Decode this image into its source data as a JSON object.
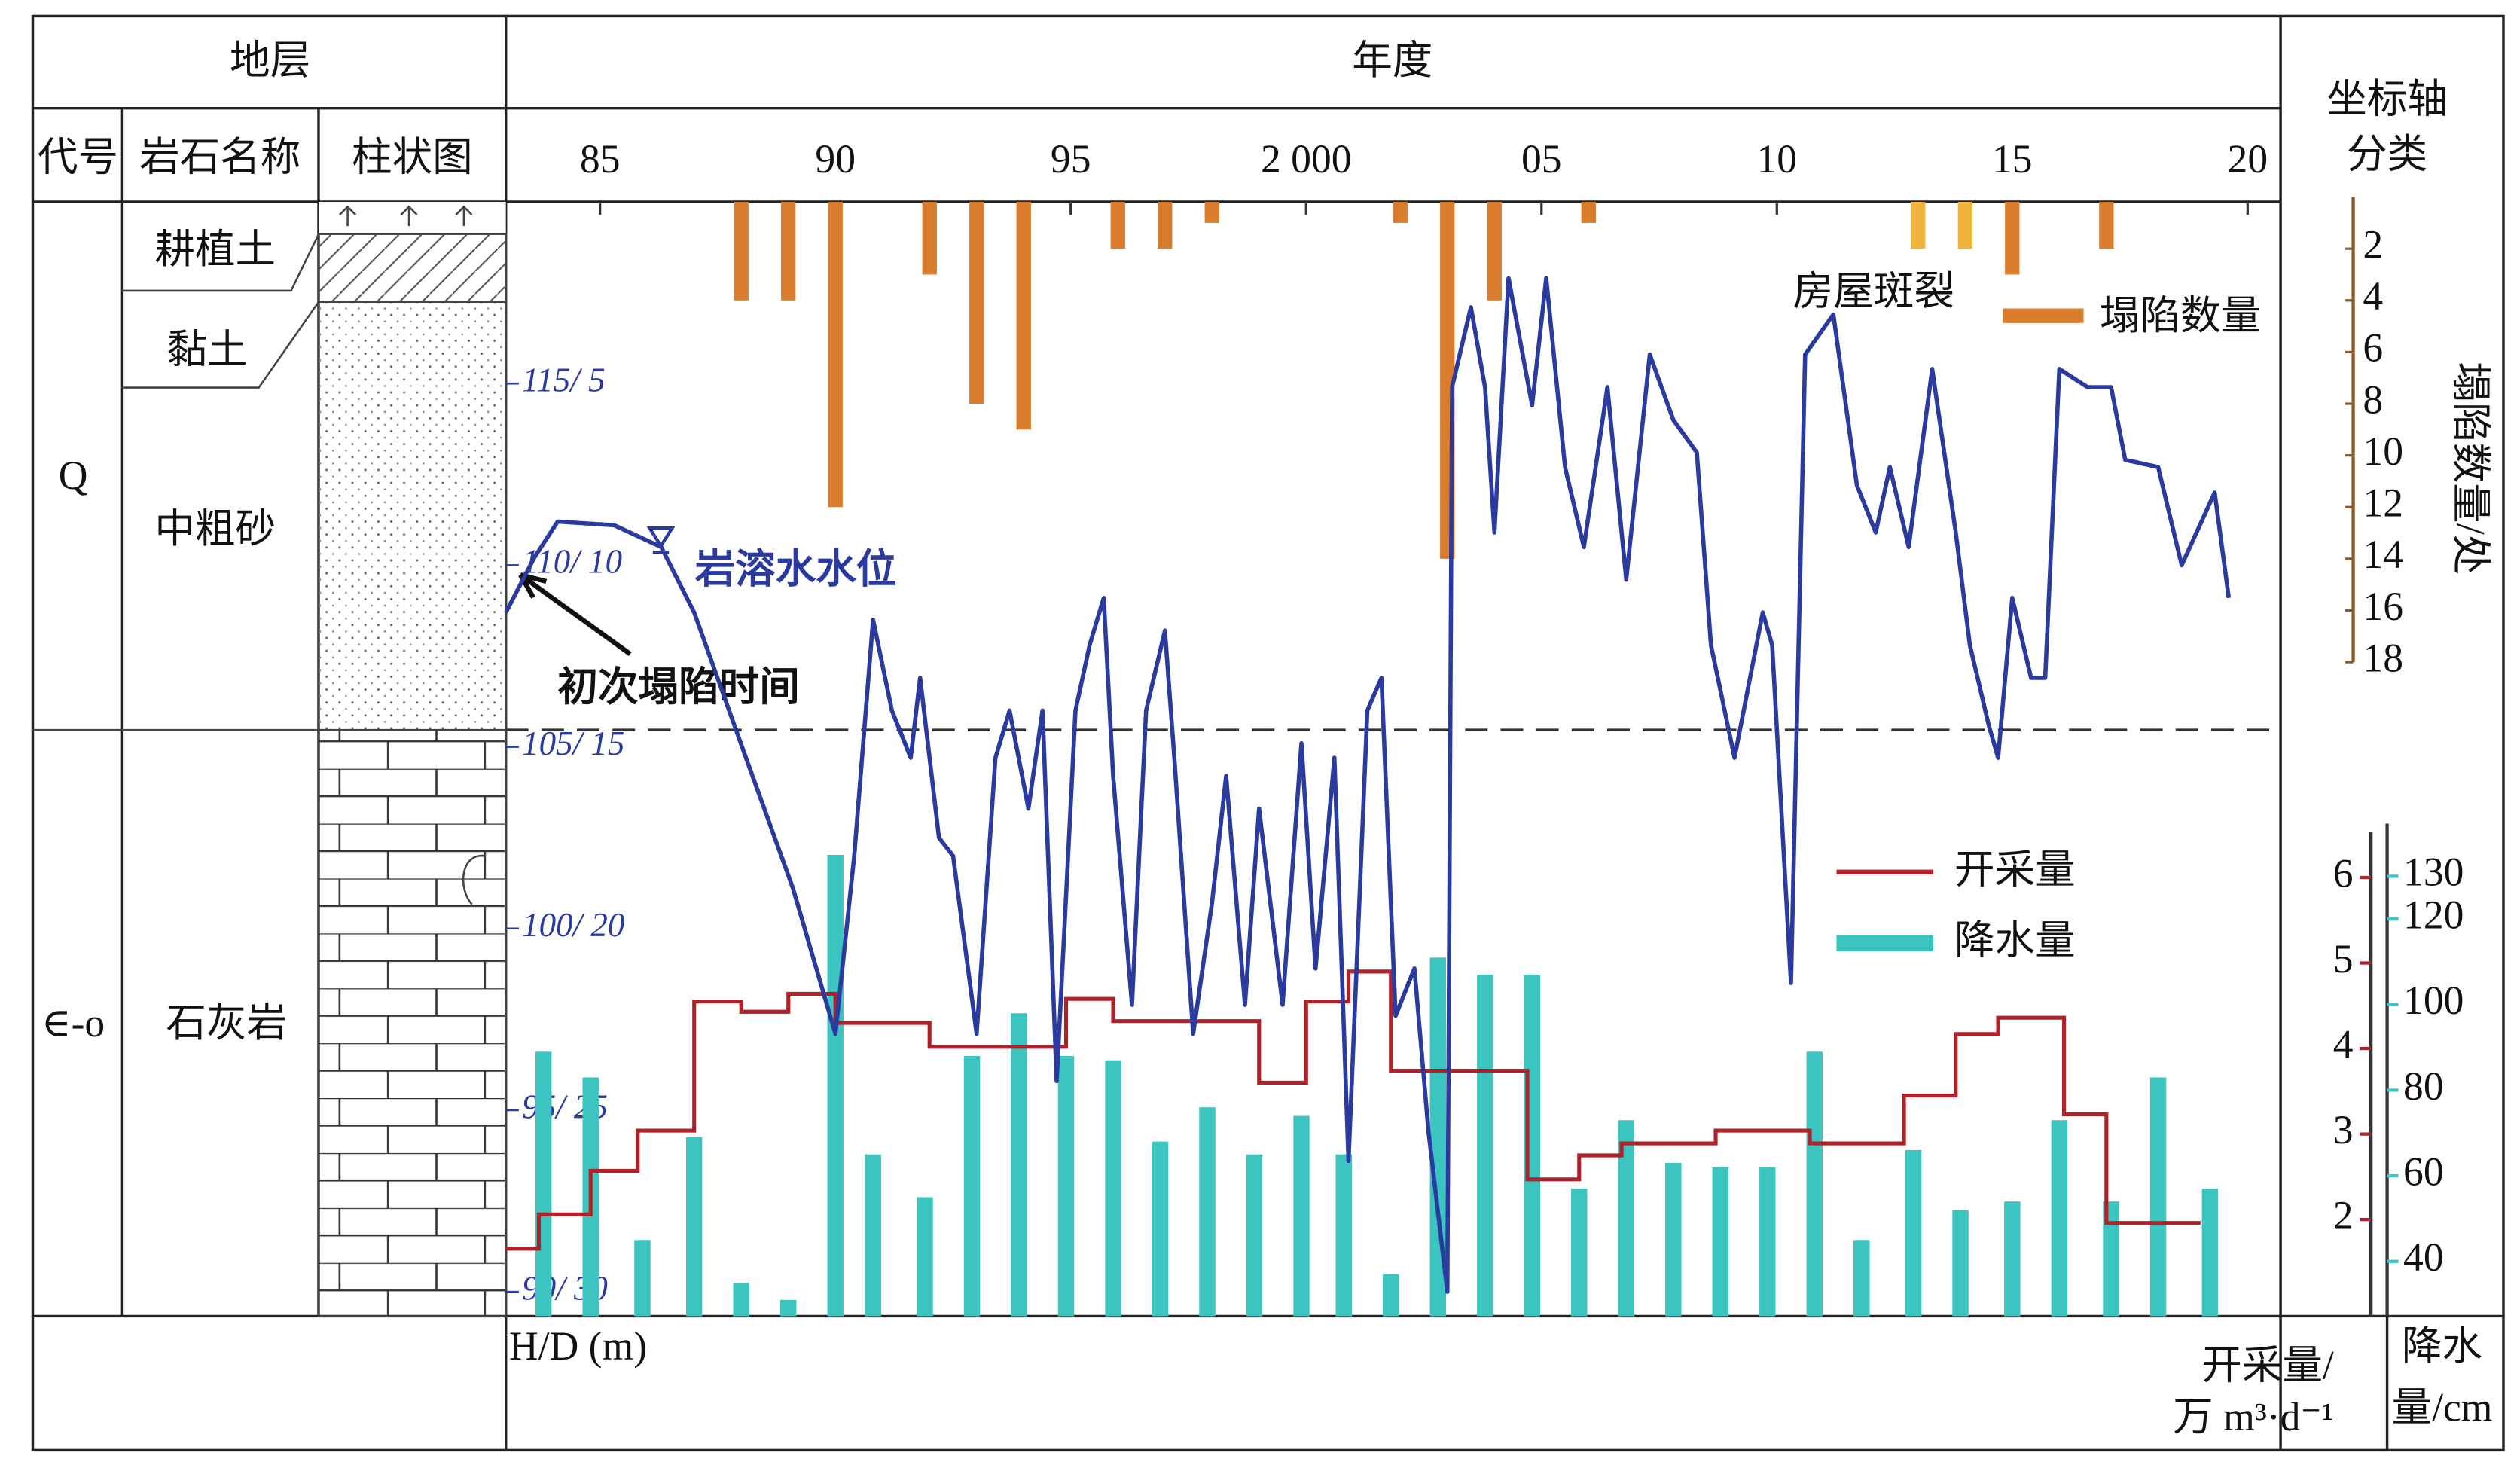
{
  "table": {
    "header": {
      "stratum": "地层",
      "year": "年度",
      "axis_class": [
        "坐标轴",
        "分类"
      ]
    },
    "columns": [
      "代号",
      "岩石名称",
      "柱状图"
    ],
    "layers": [
      {
        "code": "Q",
        "rocks": [
          "耕植土",
          "黏土",
          "中粗砂"
        ]
      },
      {
        "code": "∈-o",
        "rocks": [
          "石灰岩"
        ]
      }
    ]
  },
  "chart_data": {
    "type": "combo",
    "ylabel": "H/D (m)",
    "y2label": [
      "开采量/",
      "万 m³·d⁻¹"
    ],
    "y3label": [
      "降水",
      "量/cm"
    ],
    "y4label": "塌陷数量/处",
    "annotations": [
      "初次塌陷时间"
    ],
    "xlim": [
      1983,
      2020.7
    ],
    "xticks": [
      {
        "value": 1985,
        "label": "85"
      },
      {
        "value": 1990,
        "label": "90"
      },
      {
        "value": 1995,
        "label": "95"
      },
      {
        "value": 2000,
        "label": "2 000"
      },
      {
        "value": 2005,
        "label": "05"
      },
      {
        "value": 2010,
        "label": "10"
      },
      {
        "value": 2015,
        "label": "15"
      },
      {
        "value": 2020,
        "label": "20"
      }
    ],
    "ylim": [
      89.33,
      120.0
    ],
    "yticks": [
      {
        "value": 90,
        "label": "90/ 30"
      },
      {
        "value": 95,
        "label": "95/ 25"
      },
      {
        "value": 100,
        "label": "100/ 20"
      },
      {
        "value": 105,
        "label": "105/ 15"
      },
      {
        "value": 110,
        "label": "110/ 10"
      },
      {
        "value": 115,
        "label": "115/ 5"
      }
    ],
    "y2lim": [
      0.87,
      13.9
    ],
    "y2ticks": [
      2,
      3,
      4,
      5,
      6
    ],
    "y3lim": [
      27.2,
      287.6
    ],
    "y3ticks": [
      40,
      60,
      80,
      100,
      120,
      130
    ],
    "y4lim": [
      0,
      18
    ],
    "y4ticks": [
      2,
      4,
      6,
      8,
      10,
      12,
      14,
      16,
      18
    ],
    "y4_inverted": true,
    "series": [
      {
        "name": "塌陷数量",
        "type": "bar",
        "axis": "y4",
        "color": "#d97c2b",
        "x": [
          1988,
          1989,
          1990,
          1992,
          1993,
          1994,
          1996,
          1997,
          1998,
          2002,
          2003,
          2004,
          2006,
          2015,
          2017
        ],
        "values": [
          4,
          4,
          12,
          3,
          8,
          9,
          2,
          2,
          1,
          1,
          14,
          4,
          1,
          3,
          2
        ]
      },
      {
        "name": "房屋斑裂",
        "type": "bar",
        "axis": "y4",
        "color": "#f0b43c",
        "x": [
          2013,
          2014
        ],
        "values": [
          2,
          2
        ]
      },
      {
        "name": "岩溶水水位",
        "type": "line",
        "axis": "y",
        "color": "#2a3a9e",
        "x": [
          1983.0,
          1983.6,
          1984.1,
          1985.3,
          1986.3,
          1987.0,
          1988.1,
          1989.1,
          1990.0,
          1990.4,
          1990.8,
          1991.2,
          1991.6,
          1991.8,
          1992.2,
          1992.5,
          1993.0,
          1993.4,
          1993.7,
          1994.1,
          1994.4,
          1994.7,
          1995.1,
          1995.4,
          1995.7,
          1995.9,
          1996.3,
          1996.6,
          1997.0,
          1997.2,
          1997.6,
          1998.0,
          1998.3,
          1998.7,
          1999.0,
          1999.5,
          1999.9,
          2000.2,
          2000.6,
          2000.9,
          2001.3,
          2001.6,
          2001.9,
          2002.3,
          2002.6,
          2003.0,
          2003.1,
          2003.5,
          2003.8,
          2004.0,
          2004.3,
          2004.8,
          2005.1,
          2005.5,
          2005.9,
          2006.4,
          2006.8,
          2007.3,
          2007.8,
          2008.3,
          2008.6,
          2009.1,
          2009.7,
          2009.9,
          2010.3,
          2010.6,
          2011.2,
          2011.7,
          2012.1,
          2012.4,
          2012.8,
          2013.3,
          2013.8,
          2014.1,
          2014.5,
          2014.7,
          2015.0,
          2015.4,
          2015.7,
          2016.0,
          2016.6,
          2017.1,
          2017.4,
          2018.1,
          2018.6,
          2019.3,
          2019.6
        ],
        "values": [
          108.7,
          110.2,
          111.2,
          111.1,
          110.5,
          108.7,
          104.7,
          101.1,
          97.1,
          102.0,
          108.5,
          106.0,
          104.7,
          106.9,
          102.5,
          102.0,
          97.1,
          104.7,
          106.0,
          103.3,
          106.0,
          95.8,
          106.0,
          107.8,
          109.1,
          104.2,
          97.9,
          106.0,
          108.2,
          104.7,
          97.1,
          100.7,
          104.2,
          97.9,
          103.3,
          97.9,
          105.1,
          98.9,
          104.7,
          93.6,
          106.0,
          106.9,
          97.6,
          98.9,
          94.4,
          90.0,
          114.9,
          117.1,
          114.9,
          110.9,
          117.9,
          114.4,
          117.9,
          112.7,
          110.5,
          114.9,
          109.6,
          115.8,
          114.0,
          113.1,
          107.8,
          104.7,
          108.7,
          107.8,
          98.5,
          115.8,
          116.9,
          112.2,
          110.9,
          112.7,
          110.5,
          115.4,
          110.9,
          107.8,
          105.6,
          104.7,
          109.1,
          106.9,
          106.9,
          115.4,
          114.9,
          114.9,
          112.9,
          112.7,
          110.0,
          112.0,
          109.1
        ]
      },
      {
        "name": "开采量",
        "type": "step",
        "axis": "y2",
        "color": "#b0222a",
        "x": [
          1983.0,
          1983.7,
          1984.8,
          1985.8,
          1987.0,
          1988.0,
          1989.0,
          1990.0,
          1992.0,
          1994.9,
          1995.9,
          1999.0,
          2000.0,
          2000.9,
          2001.8,
          2004.7,
          2005.8,
          2006.7,
          2008.7,
          2010.7,
          2012.7,
          2013.8,
          2014.7,
          2016.1,
          2017.0,
          2019.0
        ],
        "values": [
          1.66,
          2.06,
          2.57,
          3.04,
          4.55,
          4.43,
          4.64,
          4.3,
          4.02,
          4.58,
          4.32,
          3.6,
          4.55,
          4.9,
          3.74,
          2.47,
          2.75,
          2.89,
          3.04,
          2.89,
          3.45,
          4.17,
          4.36,
          3.23,
          1.96,
          1.96
        ]
      },
      {
        "name": "降水量",
        "type": "bar",
        "axis": "y3",
        "color": "#3cc4c0",
        "x": [
          1983.8,
          1984.8,
          1985.9,
          1987.0,
          1988.0,
          1989.0,
          1990.0,
          1990.8,
          1991.9,
          1992.9,
          1993.9,
          1994.9,
          1995.9,
          1996.9,
          1997.9,
          1998.9,
          1999.9,
          2000.8,
          2001.8,
          2002.8,
          2003.8,
          2004.8,
          2005.8,
          2006.8,
          2007.8,
          2008.8,
          2009.8,
          2010.8,
          2011.8,
          2012.9,
          2013.9,
          2015.0,
          2016.0,
          2017.1,
          2018.1,
          2019.2
        ],
        "values": [
          89,
          83,
          45,
          69,
          35,
          31,
          135,
          65,
          55,
          88,
          98,
          88,
          87,
          68,
          76,
          65,
          74,
          65,
          37,
          111,
          107,
          107,
          57,
          73,
          63,
          62,
          62,
          89,
          45,
          66,
          52,
          54,
          73,
          54,
          83,
          57
        ]
      }
    ]
  }
}
